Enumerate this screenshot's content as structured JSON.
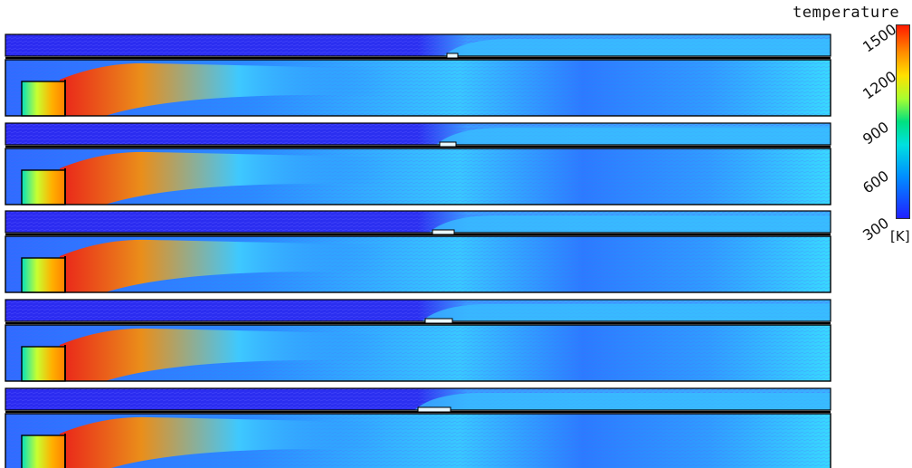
{
  "legend": {
    "title": "temperature",
    "unit": "[K]",
    "ticks": [
      "1500",
      "1200",
      "900",
      "600",
      "300"
    ]
  },
  "colors": {
    "background": "#2828e8",
    "jet_hot": "#ff2000",
    "jet_warm": "#ffa000",
    "cool_core": "#30c8ff",
    "wall": "#000000"
  },
  "panels": [
    {
      "id": 1,
      "step_offset": 0.0
    },
    {
      "id": 2,
      "step_offset": 0.02
    },
    {
      "id": 3,
      "step_offset": 0.04
    },
    {
      "id": 4,
      "step_offset": 0.06
    },
    {
      "id": 5,
      "step_offset": 0.08
    }
  ]
}
